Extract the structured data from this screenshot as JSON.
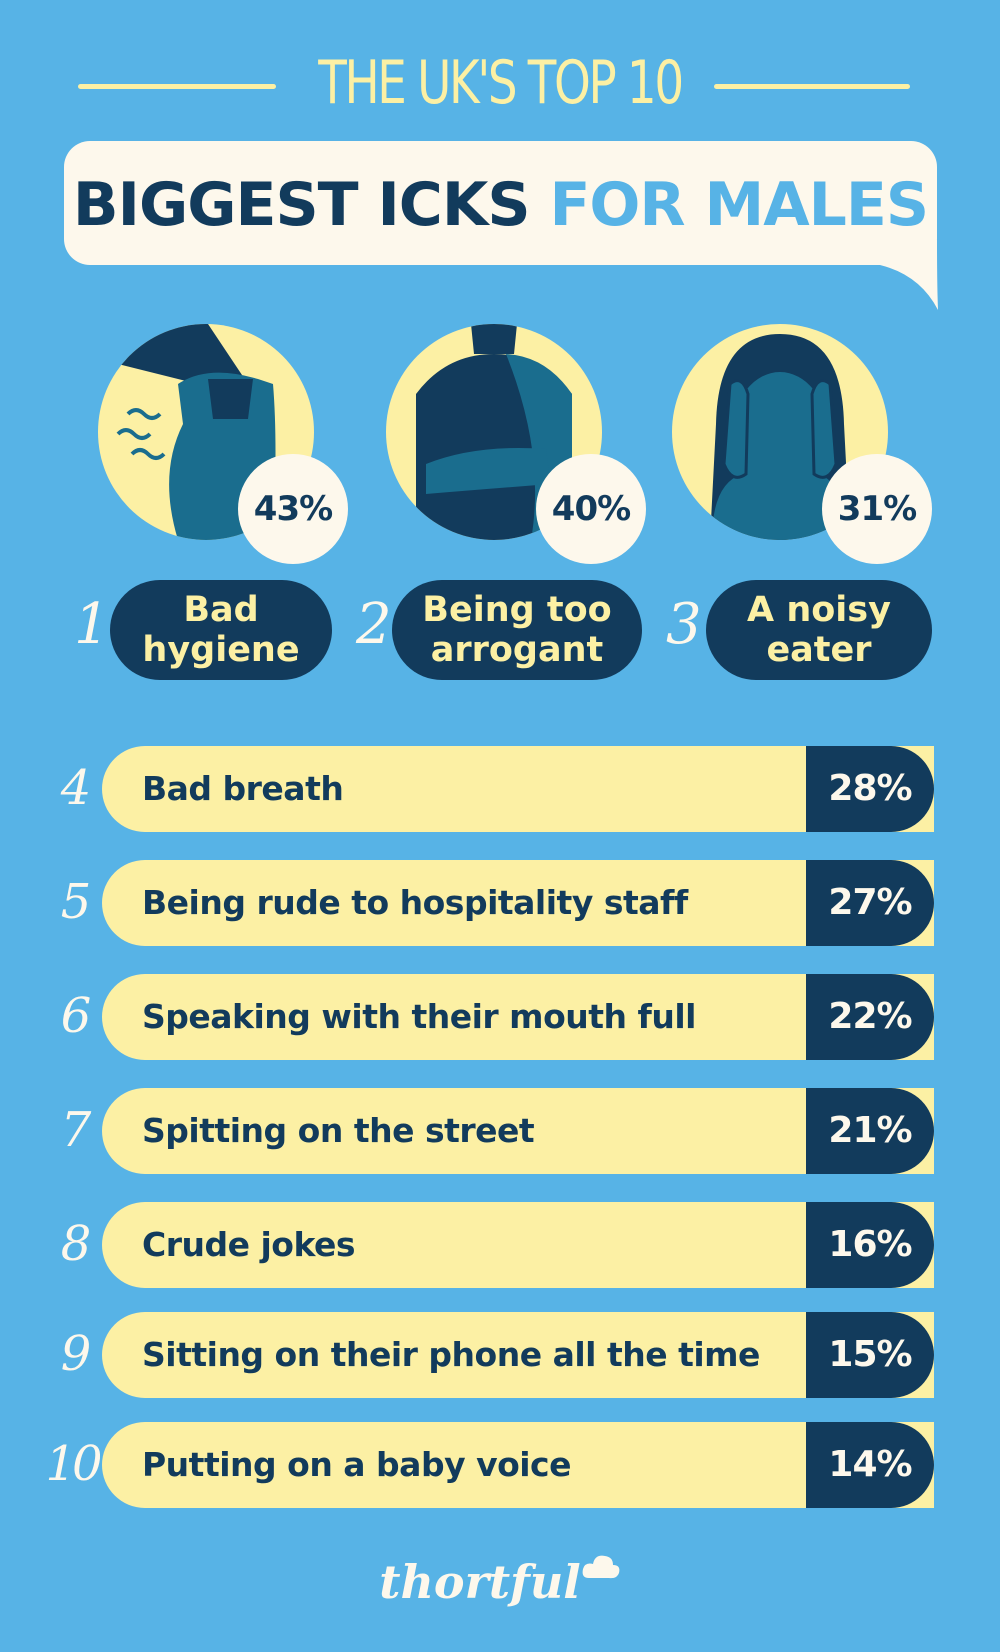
{
  "header": {
    "kicker": "THE UK'S TOP 10",
    "title_part1": "BIGGEST ICKS",
    "title_part2": "FOR MALES"
  },
  "colors": {
    "background": "#57b3e6",
    "navy": "#123b5c",
    "cream": "#fdf8ec",
    "yellow": "#fcf0a4",
    "teal": "#1a6d8e"
  },
  "chart_data": {
    "type": "table",
    "title": "THE UK'S TOP 10 BIGGEST ICKS FOR MALES",
    "items": [
      {
        "rank": "1",
        "label": "Bad\nhygiene",
        "value": "43%",
        "icon": "armpit-odour-icon"
      },
      {
        "rank": "2",
        "label": "Being too\narrogant",
        "value": "40%",
        "icon": "crossed-arms-icon"
      },
      {
        "rank": "3",
        "label": "A noisy\neater",
        "value": "31%",
        "icon": "covering-ears-icon"
      },
      {
        "rank": "4",
        "label": "Bad breath",
        "value": "28%"
      },
      {
        "rank": "5",
        "label": "Being rude to hospitality staff",
        "value": "27%"
      },
      {
        "rank": "6",
        "label": "Speaking with their mouth full",
        "value": "22%"
      },
      {
        "rank": "7",
        "label": "Spitting on the street",
        "value": "21%"
      },
      {
        "rank": "8",
        "label": "Crude jokes",
        "value": "16%"
      },
      {
        "rank": "9",
        "label": "Sitting on their phone all the time",
        "value": "15%"
      },
      {
        "rank": "10",
        "label": "Putting on a baby voice",
        "value": "14%"
      }
    ]
  },
  "brand": "thortful"
}
